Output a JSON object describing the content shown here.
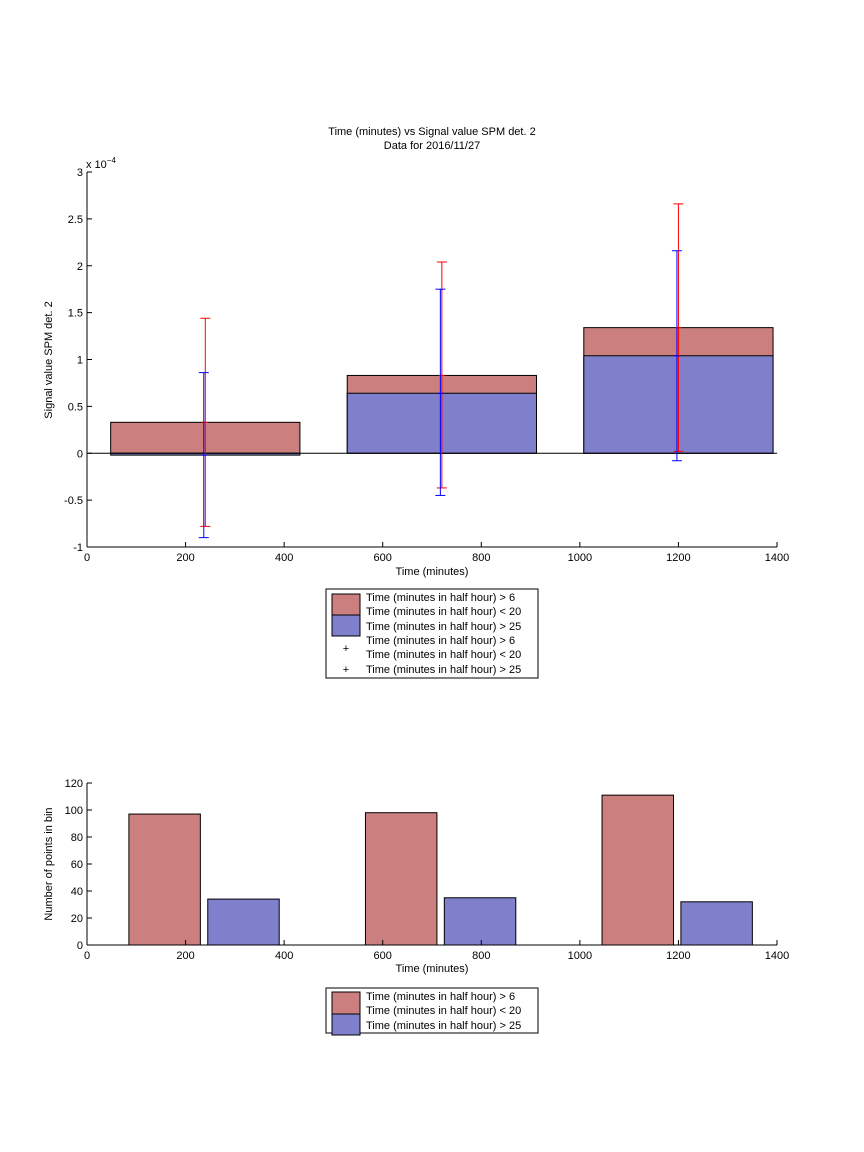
{
  "colors": {
    "red_fill": "#cc7f7f",
    "blue_fill": "#7f7fcc",
    "red_err": "#ff0000",
    "blue_err": "#0000ff"
  },
  "chart_data": [
    {
      "type": "bar",
      "title": "Time (minutes) vs Signal value SPM det. 2",
      "subtitle": "Data for 2016/11/27",
      "xlabel": "Time (minutes)",
      "ylabel": "Signal value SPM det. 2",
      "exponent_label": "x 10",
      "exponent_power": "−4",
      "xlim": [
        0,
        1400
      ],
      "ylim": [
        -1,
        3
      ],
      "xticks": [
        0,
        200,
        400,
        600,
        800,
        1000,
        1200,
        1400
      ],
      "yticks": [
        -1,
        -0.5,
        0,
        0.5,
        1,
        1.5,
        2,
        2.5,
        3
      ],
      "categories": [
        240,
        720,
        1200
      ],
      "bar_half_width": 192,
      "series": [
        {
          "name": "Time (minutes in half hour) > 6\nTime (minutes in half hour) < 20",
          "color_key": "red_fill",
          "values": [
            0.33,
            0.83,
            1.34
          ],
          "err_low": [
            -0.78,
            -0.37,
            0.02
          ],
          "err_high": [
            1.44,
            2.04,
            2.66
          ]
        },
        {
          "name": "Time (minutes in half hour) > 25",
          "color_key": "blue_fill",
          "values": [
            -0.02,
            0.64,
            1.04
          ],
          "err_low": [
            -0.9,
            -0.45,
            -0.08
          ],
          "err_high": [
            0.86,
            1.75,
            2.16
          ]
        }
      ],
      "legend": [
        "Time (minutes in half hour) > 6",
        "Time (minutes in half hour) < 20",
        "Time (minutes in half hour) > 25",
        "Time (minutes in half hour) > 6",
        "Time (minutes in half hour) < 20",
        "Time (minutes in half hour) > 25"
      ],
      "grid": false,
      "legend_position": "below"
    },
    {
      "type": "bar",
      "xlabel": "Time (minutes)",
      "ylabel": "Number of points in bin",
      "xlim": [
        0,
        1400
      ],
      "ylim": [
        0,
        120
      ],
      "xticks": [
        0,
        200,
        400,
        600,
        800,
        1000,
        1200,
        1400
      ],
      "yticks": [
        0,
        20,
        40,
        60,
        80,
        100,
        120
      ],
      "series": [
        {
          "name": "Time (minutes in half hour) > 6\nTime (minutes in half hour) < 20",
          "color_key": "red_fill",
          "x_start": [
            85,
            565,
            1045
          ],
          "x_end": [
            230,
            710,
            1190
          ],
          "values": [
            97,
            98,
            111
          ]
        },
        {
          "name": "Time (minutes in half hour) > 25",
          "color_key": "blue_fill",
          "x_start": [
            245,
            725,
            1205
          ],
          "x_end": [
            390,
            870,
            1350
          ],
          "values": [
            34,
            35,
            32
          ]
        }
      ],
      "legend": [
        "Time (minutes in half hour) > 6",
        "Time (minutes in half hour) < 20",
        "Time (minutes in half hour) > 25"
      ],
      "grid": false,
      "legend_position": "below"
    }
  ]
}
